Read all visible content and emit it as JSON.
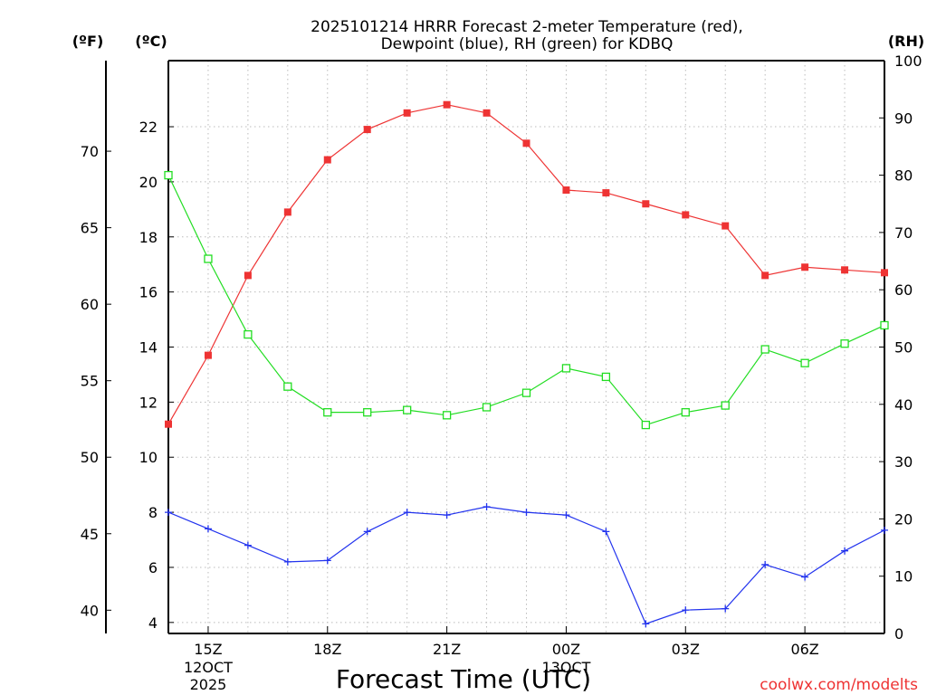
{
  "chart_data": {
    "type": "line",
    "title_line1": "2025101214 HRRR Forecast 2-meter Temperature (red),",
    "title_line2": "Dewpoint (blue), RH (green) for KDBQ",
    "xlabel": "Forecast Time (UTC)",
    "left_unit_f": "(ºF)",
    "left_unit_c": "(ºC)",
    "right_unit": "(RH)",
    "watermark": "coolwx.com/modelts",
    "grid": true,
    "x_hours": [
      14,
      15,
      16,
      17,
      18,
      19,
      20,
      21,
      22,
      23,
      24,
      25,
      26,
      27,
      28,
      29,
      30,
      31,
      32
    ],
    "x_range": [
      14,
      32
    ],
    "x_ticks": [
      {
        "hour": 15,
        "label": "15Z"
      },
      {
        "hour": 18,
        "label": "18Z"
      },
      {
        "hour": 21,
        "label": "21Z"
      },
      {
        "hour": 24,
        "label": "00Z"
      },
      {
        "hour": 27,
        "label": "03Z"
      },
      {
        "hour": 30,
        "label": "06Z"
      }
    ],
    "date_labels": [
      {
        "hour": 15,
        "lines": [
          "12OCT",
          "2025"
        ]
      },
      {
        "hour": 24,
        "lines": [
          "13OCT"
        ]
      }
    ],
    "celsius_axis": {
      "range": [
        3.6,
        24.4
      ],
      "ticks": [
        4,
        6,
        8,
        10,
        12,
        14,
        16,
        18,
        20,
        22
      ]
    },
    "fahrenheit_axis": {
      "ticks": [
        40,
        45,
        50,
        55,
        60,
        65,
        70
      ]
    },
    "rh_axis": {
      "range": [
        0,
        100
      ],
      "ticks": [
        0,
        10,
        20,
        30,
        40,
        50,
        60,
        70,
        80,
        90,
        100
      ]
    },
    "series": [
      {
        "name": "Temperature",
        "unit": "C",
        "color": "#ee3333",
        "marker": "filled-square",
        "values": [
          11.2,
          13.7,
          16.6,
          18.9,
          20.8,
          21.9,
          22.5,
          22.8,
          22.5,
          21.4,
          19.7,
          19.6,
          19.2,
          18.8,
          18.4,
          16.6,
          16.9,
          16.8,
          16.7
        ]
      },
      {
        "name": "Dewpoint",
        "unit": "C",
        "color": "#2233ee",
        "marker": "plus",
        "values": [
          8.0,
          7.4,
          6.8,
          6.2,
          6.25,
          7.3,
          8.0,
          7.9,
          8.2,
          8.0,
          7.9,
          7.3,
          3.95,
          4.45,
          4.5,
          6.1,
          5.65,
          6.6,
          7.35
        ]
      },
      {
        "name": "RH",
        "unit": "%",
        "color": "#22dd22",
        "marker": "open-square",
        "values": [
          80.0,
          65.4,
          52.2,
          43.1,
          38.6,
          38.6,
          39.0,
          38.1,
          39.5,
          42.0,
          46.3,
          44.8,
          36.4,
          38.6,
          39.8,
          49.6,
          47.2,
          50.6,
          53.8
        ]
      }
    ]
  }
}
